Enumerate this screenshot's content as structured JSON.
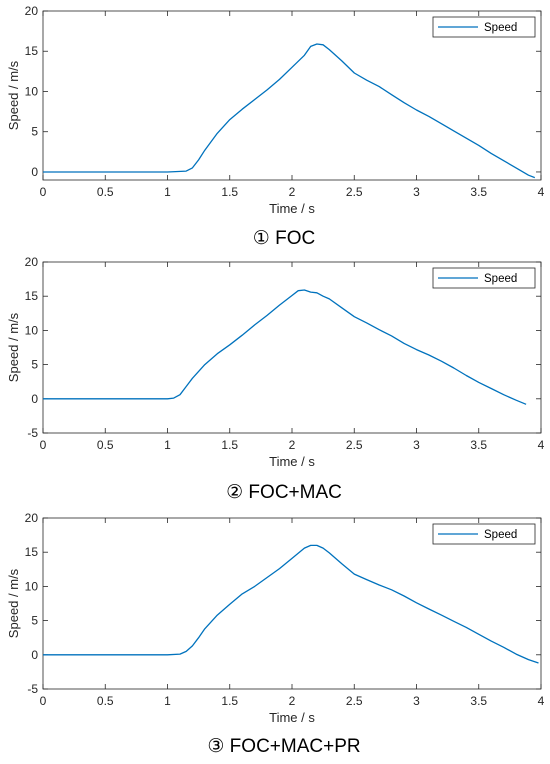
{
  "series_color": "#0072BD",
  "chart_data": [
    {
      "type": "line",
      "caption": "① FOC",
      "xlabel": "Time / s",
      "ylabel": "Speed / m/s",
      "xlim": [
        0,
        4
      ],
      "ylim": [
        -1,
        20
      ],
      "xticks": [
        "0",
        "0.5",
        "1",
        "1.5",
        "2",
        "2.5",
        "3",
        "3.5",
        "4"
      ],
      "yticks": [
        "0",
        "5",
        "10",
        "15",
        "20"
      ],
      "grid": false,
      "legend_position": "top-right",
      "series": [
        {
          "name": "Speed",
          "x": [
            0,
            0.5,
            1.0,
            1.15,
            1.2,
            1.25,
            1.3,
            1.4,
            1.5,
            1.6,
            1.7,
            1.8,
            1.9,
            2.0,
            2.1,
            2.15,
            2.2,
            2.25,
            2.3,
            2.4,
            2.5,
            2.6,
            2.7,
            2.8,
            2.9,
            3.0,
            3.1,
            3.2,
            3.3,
            3.4,
            3.5,
            3.6,
            3.7,
            3.8,
            3.9,
            3.95
          ],
          "y": [
            0,
            0,
            0,
            0.1,
            0.5,
            1.5,
            2.7,
            4.8,
            6.5,
            7.8,
            9.0,
            10.2,
            11.5,
            13.0,
            14.5,
            15.6,
            15.9,
            15.8,
            15.2,
            13.8,
            12.3,
            11.4,
            10.6,
            9.6,
            8.6,
            7.7,
            6.9,
            6.0,
            5.1,
            4.2,
            3.3,
            2.3,
            1.4,
            0.5,
            -0.4,
            -0.7
          ]
        }
      ]
    },
    {
      "type": "line",
      "caption": "② FOC+MAC",
      "xlabel": "Time / s",
      "ylabel": "Speed / m/s",
      "xlim": [
        0,
        4
      ],
      "ylim": [
        -5,
        20
      ],
      "xticks": [
        "0",
        "0.5",
        "1",
        "1.5",
        "2",
        "2.5",
        "3",
        "3.5",
        "4"
      ],
      "yticks": [
        "-5",
        "0",
        "5",
        "10",
        "15",
        "20"
      ],
      "grid": false,
      "legend_position": "top-right",
      "series": [
        {
          "name": "Speed",
          "x": [
            0,
            0.5,
            1.0,
            1.05,
            1.1,
            1.15,
            1.2,
            1.3,
            1.4,
            1.5,
            1.6,
            1.7,
            1.8,
            1.9,
            2.0,
            2.05,
            2.1,
            2.15,
            2.2,
            2.25,
            2.3,
            2.4,
            2.5,
            2.6,
            2.7,
            2.8,
            2.9,
            3.0,
            3.1,
            3.2,
            3.3,
            3.4,
            3.5,
            3.6,
            3.7,
            3.8,
            3.88
          ],
          "y": [
            0,
            0,
            0,
            0.1,
            0.6,
            1.8,
            3.0,
            5.0,
            6.6,
            7.9,
            9.3,
            10.8,
            12.2,
            13.7,
            15.1,
            15.8,
            15.9,
            15.6,
            15.5,
            15.0,
            14.6,
            13.3,
            12.0,
            11.1,
            10.1,
            9.2,
            8.1,
            7.2,
            6.4,
            5.5,
            4.5,
            3.4,
            2.4,
            1.5,
            0.6,
            -0.2,
            -0.8
          ]
        }
      ]
    },
    {
      "type": "line",
      "caption": "③ FOC+MAC+PR",
      "xlabel": "Time / s",
      "ylabel": "Speed / m/s",
      "xlim": [
        0,
        4
      ],
      "ylim": [
        -5,
        20
      ],
      "xticks": [
        "0",
        "0.5",
        "1",
        "1.5",
        "2",
        "2.5",
        "3",
        "3.5",
        "4"
      ],
      "yticks": [
        "-5",
        "0",
        "5",
        "10",
        "15",
        "20"
      ],
      "grid": false,
      "legend_position": "top-right",
      "series": [
        {
          "name": "Speed",
          "x": [
            0,
            0.5,
            1.0,
            1.1,
            1.15,
            1.2,
            1.25,
            1.3,
            1.4,
            1.5,
            1.6,
            1.7,
            1.8,
            1.9,
            2.0,
            2.1,
            2.15,
            2.2,
            2.25,
            2.3,
            2.4,
            2.5,
            2.6,
            2.7,
            2.8,
            2.9,
            3.0,
            3.1,
            3.2,
            3.3,
            3.4,
            3.5,
            3.6,
            3.7,
            3.8,
            3.9,
            3.98
          ],
          "y": [
            0,
            0,
            0,
            0.1,
            0.5,
            1.3,
            2.5,
            3.8,
            5.8,
            7.4,
            8.9,
            10.0,
            11.3,
            12.6,
            14.1,
            15.6,
            16.0,
            16.0,
            15.6,
            14.9,
            13.3,
            11.8,
            11.0,
            10.2,
            9.5,
            8.6,
            7.6,
            6.7,
            5.8,
            4.9,
            4.0,
            3.0,
            2.0,
            1.1,
            0.1,
            -0.7,
            -1.2
          ]
        }
      ]
    }
  ]
}
